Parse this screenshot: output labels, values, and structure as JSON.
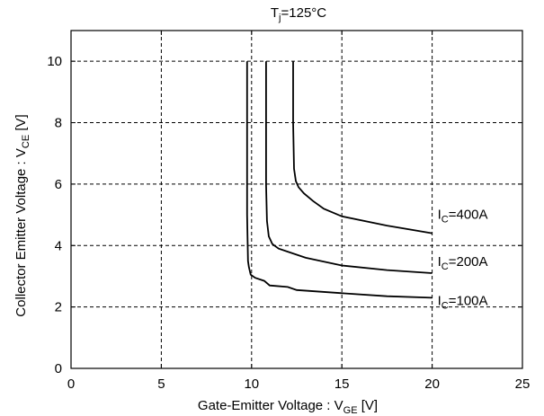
{
  "chart_data": {
    "type": "line",
    "title": {
      "pre": "T",
      "sub": "j",
      "post": "=125°C"
    },
    "xlabel": {
      "pre": "Gate-Emitter Voltage  :  V",
      "sub": "GE",
      "post": "  [V]"
    },
    "ylabel": {
      "pre": "Collector Emitter Voltage : V",
      "sub": "CE",
      "post": " [V]"
    },
    "xlim": [
      0,
      25
    ],
    "ylim": [
      0,
      11
    ],
    "xticks": [
      "0",
      "5",
      "10",
      "15",
      "20",
      "25"
    ],
    "yticks": [
      "0",
      "2",
      "4",
      "6",
      "8",
      "10"
    ],
    "grid": true,
    "series": [
      {
        "label": {
          "pre": "I",
          "sub": "C",
          "post": "=400A"
        },
        "x": [
          12.3,
          12.3,
          12.35,
          12.45,
          12.6,
          12.9,
          13.4,
          14.0,
          15.0,
          17.5,
          20.0
        ],
        "y": [
          10.0,
          8.0,
          6.5,
          6.1,
          5.9,
          5.7,
          5.45,
          5.2,
          4.95,
          4.65,
          4.4
        ]
      },
      {
        "label": {
          "pre": "I",
          "sub": "C",
          "post": "=200A"
        },
        "x": [
          10.8,
          10.8,
          10.85,
          10.95,
          11.15,
          11.5,
          12.0,
          13.0,
          15.0,
          17.5,
          20.0
        ],
        "y": [
          10.0,
          6.0,
          4.8,
          4.3,
          4.05,
          3.9,
          3.8,
          3.6,
          3.35,
          3.2,
          3.1
        ]
      },
      {
        "label": {
          "pre": "I",
          "sub": "C",
          "post": "=100A"
        },
        "x": [
          9.75,
          9.75,
          9.8,
          9.85,
          9.95,
          10.2,
          10.7,
          11.0,
          12.0,
          12.5,
          15.0,
          17.5,
          20.0
        ],
        "y": [
          10.0,
          5.0,
          3.5,
          3.3,
          3.05,
          2.95,
          2.85,
          2.7,
          2.65,
          2.55,
          2.45,
          2.35,
          2.3
        ]
      }
    ]
  }
}
